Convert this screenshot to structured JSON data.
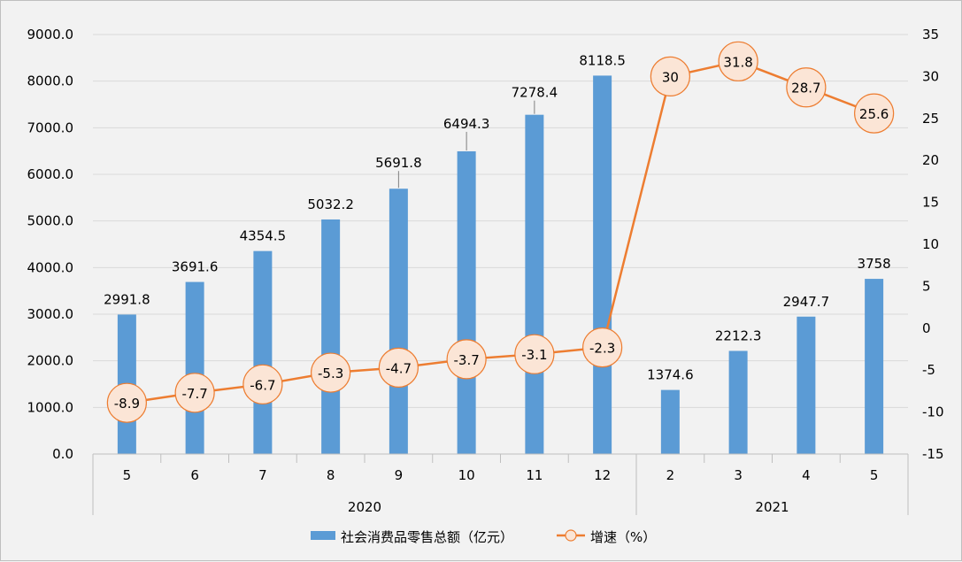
{
  "chart_data": {
    "type": "bar+line",
    "title": "",
    "categories": [
      "5",
      "6",
      "7",
      "8",
      "9",
      "10",
      "11",
      "12",
      "2",
      "3",
      "4",
      "5"
    ],
    "groups": [
      {
        "label": "2020",
        "count": 8
      },
      {
        "label": "2021",
        "count": 4
      }
    ],
    "series": [
      {
        "name": "社会消费品零售总额（亿元）",
        "type": "bar",
        "axis": "left",
        "color": "#5b9bd5",
        "values": [
          2991.8,
          3691.6,
          4354.5,
          5032.2,
          5691.8,
          6494.3,
          7278.4,
          8118.5,
          1374.6,
          2212.3,
          2947.7,
          3758
        ],
        "labels": [
          "2991.8",
          "3691.6",
          "4354.5",
          "5032.2",
          "5691.8",
          "6494.3",
          "7278.4",
          "8118.5",
          "1374.6",
          "2212.3",
          "2947.7",
          "3758"
        ]
      },
      {
        "name": "增速（%）",
        "type": "line",
        "axis": "right",
        "color": "#ed7d31",
        "marker_fill": "#fbe5d6",
        "values": [
          -8.9,
          -7.7,
          -6.7,
          -5.3,
          -4.7,
          -3.7,
          -3.1,
          -2.3,
          30,
          31.8,
          28.7,
          25.6
        ],
        "labels": [
          "-8.9",
          "-7.7",
          "-6.7",
          "-5.3",
          "-4.7",
          "-3.7",
          "-3.1",
          "-2.3",
          "30",
          "31.8",
          "28.7",
          "25.6"
        ]
      }
    ],
    "y_left": {
      "min": 0,
      "max": 9000,
      "step": 1000,
      "tick_labels": [
        "0.0",
        "1000.0",
        "2000.0",
        "3000.0",
        "4000.0",
        "5000.0",
        "6000.0",
        "7000.0",
        "8000.0",
        "9000.0"
      ]
    },
    "y_right": {
      "min": -15,
      "max": 35,
      "step": 5,
      "tick_labels": [
        "-15",
        "-10",
        "-5",
        "0",
        "5",
        "10",
        "15",
        "20",
        "25",
        "30",
        "35"
      ]
    },
    "grid": true,
    "legend_position": "bottom"
  }
}
